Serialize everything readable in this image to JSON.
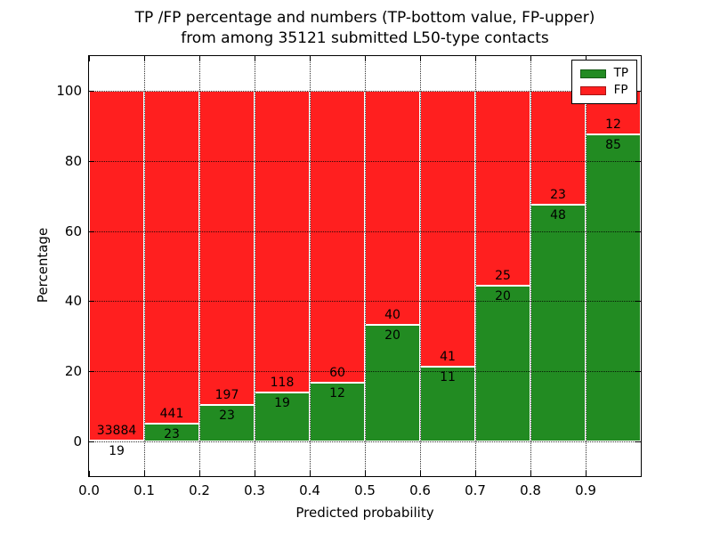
{
  "chart_data": {
    "type": "bar",
    "subtype": "stacked-percentage",
    "title_lines": [
      "TP /FP percentage and numbers (TP-bottom value, FP-upper)",
      "from among 35121 submitted L50-type contacts"
    ],
    "xlabel": "Predicted probability",
    "ylabel": "Percentage",
    "total_submitted_contacts": 35121,
    "xlim": [
      0.0,
      1.0
    ],
    "ylim": [
      -10,
      110
    ],
    "x_tick_labels": [
      "0.0",
      "0.1",
      "0.2",
      "0.3",
      "0.4",
      "0.5",
      "0.6",
      "0.7",
      "0.8",
      "0.9"
    ],
    "y_ticks": [
      0,
      20,
      40,
      60,
      80,
      100
    ],
    "categories": [
      "0.0-0.1",
      "0.1-0.2",
      "0.2-0.3",
      "0.3-0.4",
      "0.4-0.5",
      "0.5-0.6",
      "0.6-0.7",
      "0.7-0.8",
      "0.8-0.9",
      "0.9-1.0"
    ],
    "series": [
      {
        "name": "TP",
        "color": "#228b22",
        "counts": [
          19,
          23,
          23,
          19,
          12,
          20,
          11,
          20,
          48,
          85
        ]
      },
      {
        "name": "FP",
        "color": "#ff1f1f",
        "counts": [
          33884,
          441,
          197,
          118,
          60,
          40,
          41,
          25,
          23,
          12
        ]
      }
    ],
    "tp_percent_of_bin": [
      0.06,
      4.96,
      10.45,
      13.87,
      16.67,
      33.33,
      21.15,
      44.44,
      67.61,
      87.63
    ],
    "legend": {
      "position": "upper right"
    },
    "grid": "dotted",
    "colors": {
      "tp_green": "#228b22",
      "fp_red": "#ff1f1f",
      "background": "#ffffff",
      "text": "#000000"
    }
  }
}
